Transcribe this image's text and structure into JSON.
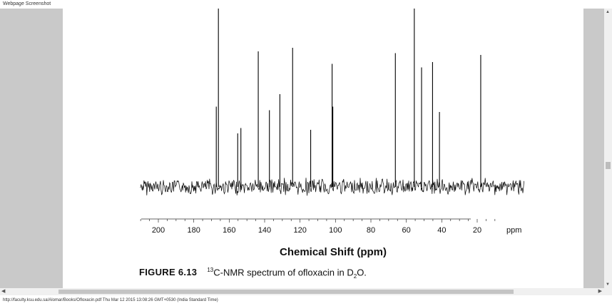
{
  "window": {
    "title": "Webpage Screenshot"
  },
  "spectrum": {
    "x_tick_labels": [
      "200",
      "180",
      "160",
      "140",
      "120",
      "100",
      "80",
      "60",
      "40",
      "20"
    ],
    "x_unit": "ppm",
    "x_axis_title": "Chemical Shift (ppm)"
  },
  "caption": {
    "figure_label": "FIGURE 6.13",
    "isotope": "13",
    "text_before_sub": "C-NMR spectrum of ofloxacin in D",
    "subscript": "2",
    "text_after_sub": "O."
  },
  "chart_data": {
    "type": "line",
    "title": "",
    "xlabel": "Chemical Shift (ppm)",
    "xlim": [
      211,
      2
    ],
    "x_reversed": true,
    "xticks": [
      200,
      180,
      160,
      140,
      120,
      100,
      80,
      60,
      40,
      20
    ],
    "peaks_ppm": [
      167.3,
      166.1,
      155.2,
      153.4,
      143.6,
      137.3,
      131.4,
      124.2,
      114.0,
      101.9,
      101.5,
      66.2,
      55.5,
      51.4,
      45.2,
      41.3,
      18.0
    ],
    "peak_relative_height": [
      0.45,
      1.0,
      0.3,
      0.33,
      0.76,
      0.43,
      0.52,
      0.78,
      0.32,
      0.69,
      0.45,
      0.75,
      1.0,
      0.67,
      0.7,
      0.42,
      0.74
    ]
  },
  "status": {
    "url_line": "http://faculty.ksu.edu.sa/Alomar/Books/Ofloxacin.pdf Thu Mar 12 2015 13:08:26 GMT+0530 (India Standard Time)"
  }
}
